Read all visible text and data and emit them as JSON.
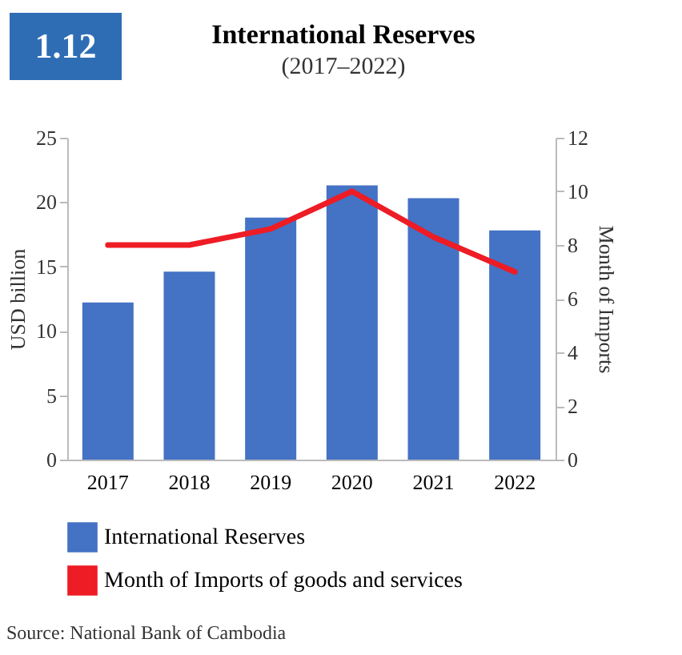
{
  "chart_data": {
    "type": "bar",
    "title": "International Reserves",
    "subtitle": "(2017–2022)",
    "ylabel": "USD billion",
    "y2label": "Month of Imports",
    "categories": [
      "2017",
      "2018",
      "2019",
      "2020",
      "2021",
      "2022"
    ],
    "series": [
      {
        "name": "International Reserves",
        "color": "#4472c4",
        "values": [
          12.2,
          14.6,
          18.8,
          21.3,
          20.3,
          17.8
        ]
      },
      {
        "name": "Month of Imports of goods and services",
        "type": "line",
        "axis": "y2",
        "color": "#ee1c25",
        "values": [
          8.0,
          8.0,
          8.6,
          10.0,
          8.3,
          7.0
        ]
      }
    ],
    "ylim": [
      0,
      25
    ],
    "yticks": [
      0,
      5,
      10,
      15,
      20,
      25
    ],
    "y2lim": [
      0,
      12
    ],
    "y2ticks": [
      0,
      2,
      4,
      6,
      8,
      10,
      12
    ],
    "legend": "bottom",
    "annotations": [
      "1.12",
      "Source: National Bank of Cambodia"
    ]
  }
}
